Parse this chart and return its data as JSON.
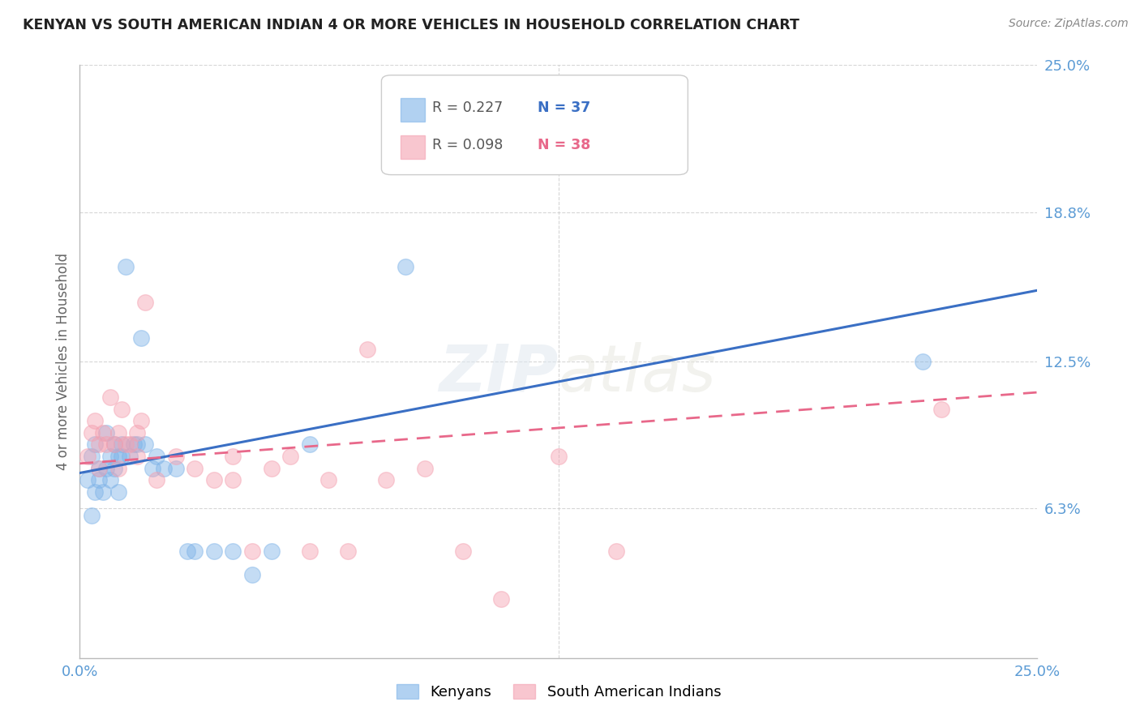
{
  "title": "KENYAN VS SOUTH AMERICAN INDIAN 4 OR MORE VEHICLES IN HOUSEHOLD CORRELATION CHART",
  "source": "Source: ZipAtlas.com",
  "ylabel": "4 or more Vehicles in Household",
  "xlim": [
    0.0,
    25.0
  ],
  "ylim": [
    0.0,
    25.0
  ],
  "ytick_values": [
    6.3,
    12.5,
    18.8,
    25.0
  ],
  "xtick_values": [
    0.0,
    25.0
  ],
  "legend_entry1": "R = 0.227   N = 37",
  "legend_entry2": "R = 0.098   N = 38",
  "legend_label1": "Kenyans",
  "legend_label2": "South American Indians",
  "watermark": "ZIPatlas",
  "blue_color": "#7EB3E8",
  "pink_color": "#F4A0B0",
  "blue_line_color": "#3A6FC4",
  "pink_line_color": "#E8688A",
  "axis_color": "#5B9BD5",
  "grid_color": "#CCCCCC",
  "background_color": "#FFFFFF",
  "blue_line_x": [
    0.0,
    25.0
  ],
  "blue_line_y": [
    7.8,
    15.5
  ],
  "pink_line_x": [
    0.0,
    25.0
  ],
  "pink_line_y": [
    8.2,
    11.2
  ],
  "kenyan_x": [
    0.2,
    0.3,
    0.3,
    0.4,
    0.4,
    0.5,
    0.5,
    0.6,
    0.7,
    0.7,
    0.8,
    0.8,
    0.9,
    0.9,
    1.0,
    1.0,
    1.1,
    1.1,
    1.2,
    1.3,
    1.4,
    1.5,
    1.6,
    1.7,
    1.9,
    2.0,
    2.2,
    2.5,
    2.8,
    3.0,
    3.5,
    4.0,
    4.5,
    5.0,
    6.0,
    8.5,
    22.0
  ],
  "kenyan_y": [
    7.5,
    6.0,
    8.5,
    7.0,
    9.0,
    7.5,
    8.0,
    7.0,
    8.0,
    9.5,
    7.5,
    8.5,
    8.0,
    9.0,
    8.5,
    7.0,
    9.0,
    8.5,
    16.5,
    8.5,
    9.0,
    9.0,
    13.5,
    9.0,
    8.0,
    8.5,
    8.0,
    8.0,
    4.5,
    4.5,
    4.5,
    4.5,
    3.5,
    4.5,
    9.0,
    16.5,
    12.5
  ],
  "sai_x": [
    0.2,
    0.3,
    0.4,
    0.5,
    0.5,
    0.6,
    0.7,
    0.8,
    0.9,
    1.0,
    1.0,
    1.1,
    1.2,
    1.3,
    1.5,
    1.5,
    1.6,
    1.7,
    2.0,
    2.5,
    3.0,
    3.5,
    4.0,
    4.0,
    4.5,
    5.0,
    5.5,
    6.0,
    6.5,
    7.0,
    7.5,
    8.0,
    9.0,
    10.0,
    11.0,
    12.5,
    14.0,
    22.5
  ],
  "sai_y": [
    8.5,
    9.5,
    10.0,
    9.0,
    8.0,
    9.5,
    9.0,
    11.0,
    9.0,
    9.5,
    8.0,
    10.5,
    9.0,
    9.0,
    9.5,
    8.5,
    10.0,
    15.0,
    7.5,
    8.5,
    8.0,
    7.5,
    7.5,
    8.5,
    4.5,
    8.0,
    8.5,
    4.5,
    7.5,
    4.5,
    13.0,
    7.5,
    8.0,
    4.5,
    2.5,
    8.5,
    4.5,
    10.5
  ]
}
